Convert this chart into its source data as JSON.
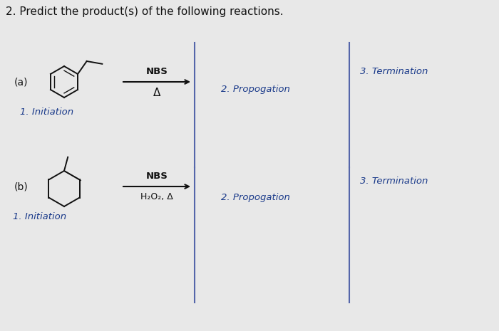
{
  "title": "2. Predict the product(s) of the following reactions.",
  "title_fontsize": 11,
  "bg_color": "#e8e8e8",
  "label_a": "(a)",
  "label_b": "(b)",
  "reaction_a_reagent_top": "NBS",
  "reaction_a_reagent_bot": "Δ",
  "reaction_b_reagent_top": "NBS",
  "reaction_b_reagent_bot": "H₂O₂, Δ",
  "initiation_text": "1. Initiation",
  "propogation_text": "2. Propogation",
  "termination_text": "3. Termination",
  "handwritten_color": "#1a3a8a",
  "black_color": "#111111",
  "arrow_color": "#111111",
  "vline_color": "#5566aa"
}
